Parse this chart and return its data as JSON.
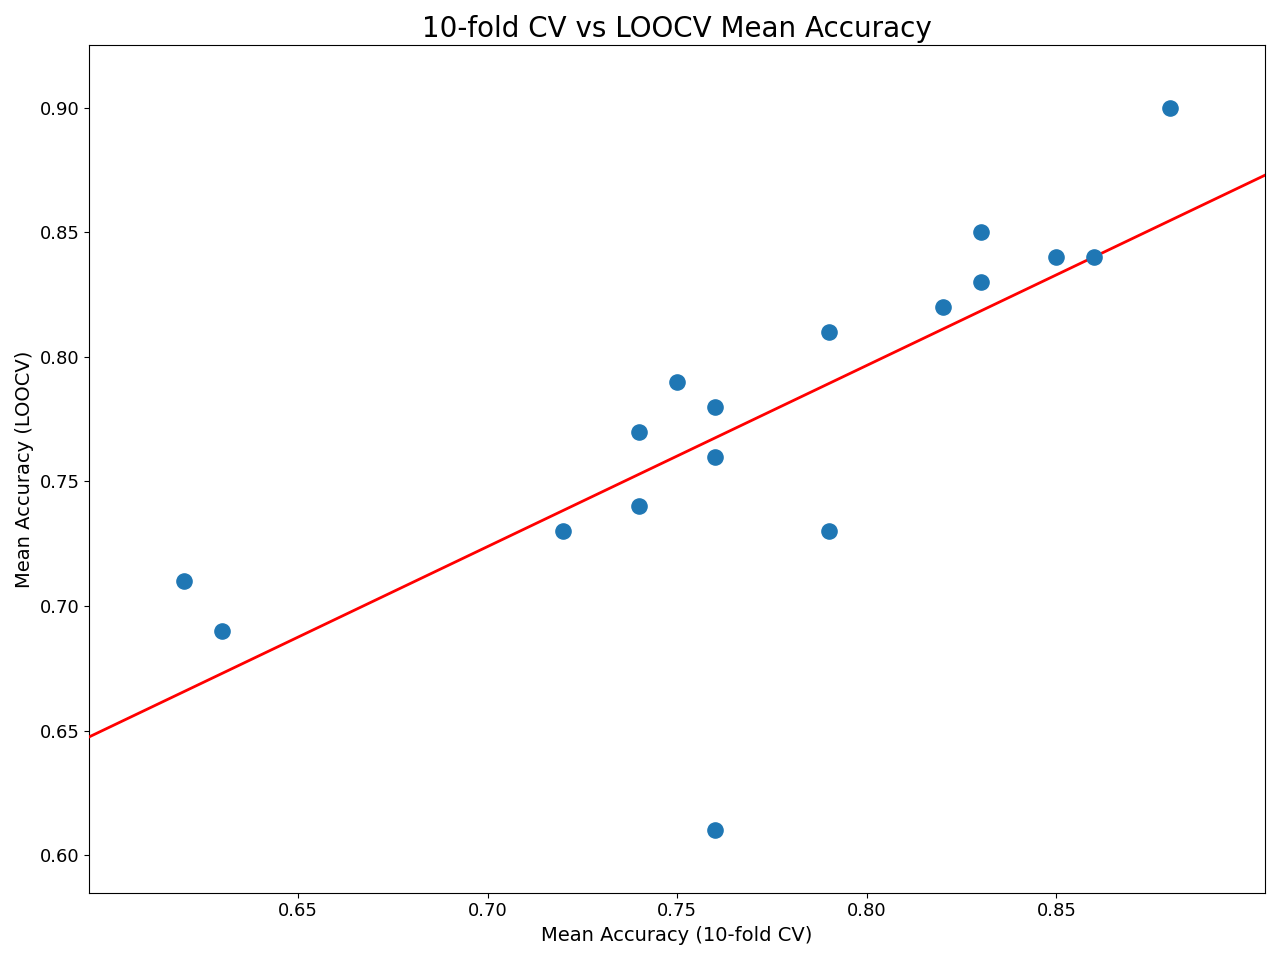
{
  "title": "10-fold CV vs LOOCV Mean Accuracy",
  "xlabel": "Mean Accuracy (10-fold CV)",
  "ylabel": "Mean Accuracy (LOOCV)",
  "scatter_x": [
    0.62,
    0.63,
    0.72,
    0.74,
    0.74,
    0.75,
    0.76,
    0.76,
    0.76,
    0.79,
    0.79,
    0.82,
    0.83,
    0.83,
    0.85,
    0.86,
    0.88
  ],
  "scatter_y": [
    0.71,
    0.69,
    0.73,
    0.77,
    0.74,
    0.79,
    0.78,
    0.76,
    0.61,
    0.81,
    0.73,
    0.82,
    0.83,
    0.85,
    0.84,
    0.84,
    0.9
  ],
  "dot_color": "#1f77b4",
  "line_color": "red",
  "dot_size": 120,
  "xlim": [
    0.595,
    0.905
  ],
  "ylim": [
    0.585,
    0.925
  ],
  "xticks": [
    0.65,
    0.7,
    0.75,
    0.8,
    0.85
  ],
  "yticks": [
    0.6,
    0.65,
    0.7,
    0.75,
    0.8,
    0.85,
    0.9
  ],
  "title_fontsize": 20,
  "label_fontsize": 14,
  "tick_fontsize": 13
}
